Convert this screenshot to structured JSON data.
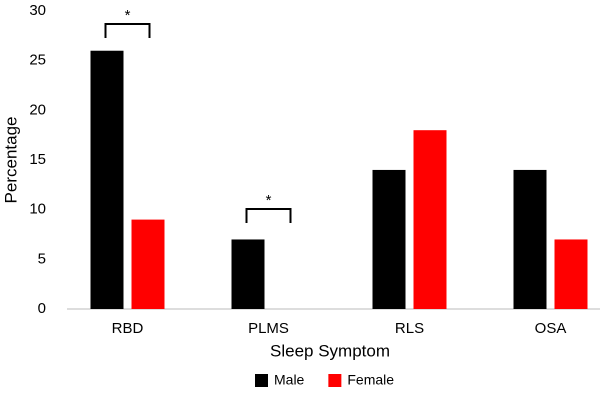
{
  "chart_data": {
    "type": "bar",
    "categories": [
      "RBD",
      "PLMS",
      "RLS",
      "OSA"
    ],
    "series": [
      {
        "name": "Male",
        "color": "#000000",
        "values": [
          26,
          7,
          14,
          14
        ]
      },
      {
        "name": "Female",
        "color": "#ff0000",
        "values": [
          9,
          0,
          18,
          7
        ]
      }
    ],
    "ylim": [
      0,
      30
    ],
    "yticks": [
      0,
      5,
      10,
      15,
      20,
      25,
      30
    ],
    "ylabel": "Percentage",
    "xlabel": "Sleep Symptom",
    "annotations": [
      "*",
      "*"
    ],
    "grid": false,
    "legend": "bottom"
  }
}
